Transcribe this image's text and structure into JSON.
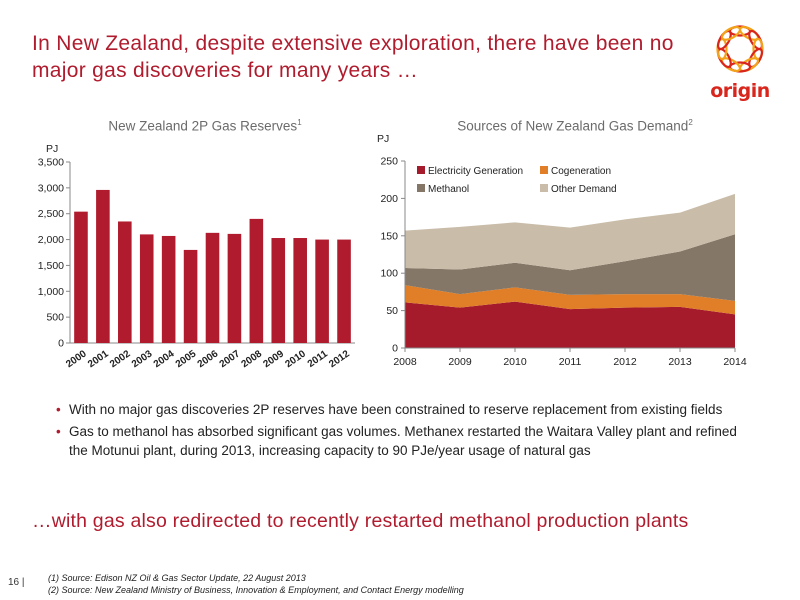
{
  "slide": {
    "title": "In New Zealand, despite extensive exploration, there have been no major gas discoveries for many years …",
    "logo_text": "origin",
    "bullets": [
      "With no major gas discoveries 2P reserves have been constrained to reserve replacement from existing fields",
      "Gas to methanol has absorbed significant gas volumes. Methanex restarted the Waitara Valley plant and refined the Motunui plant, during 2013, increasing capacity to 90 PJe/year usage of natural gas"
    ],
    "conclusion": "…with gas also redirected to recently restarted methanol production plants",
    "page_number": "16 |",
    "sources": [
      "(1)   Source: Edison NZ Oil & Gas Sector Update, 22 August 2013",
      "(2)   Source: New Zealand Ministry of Business, Innovation & Employment, and Contact Energy modelling"
    ]
  },
  "colors": {
    "brand_red": "#b01c2e",
    "logo_red": "#d9261c",
    "logo_orange": "#f2a31a"
  },
  "chart_data": [
    {
      "type": "bar",
      "title": "New Zealand 2P Gas Reserves",
      "title_footnote": "1",
      "ylabel": "PJ",
      "categories": [
        "2000",
        "2001",
        "2002",
        "2003",
        "2004",
        "2005",
        "2006",
        "2007",
        "2008",
        "2009",
        "2010",
        "2011",
        "2012"
      ],
      "values": [
        2540,
        2960,
        2350,
        2100,
        2070,
        1800,
        2130,
        2110,
        2400,
        2030,
        2030,
        2000,
        2000
      ],
      "ylim": [
        0,
        3500
      ],
      "yticks": [
        0,
        500,
        1000,
        1500,
        2000,
        2500,
        3000,
        3500
      ],
      "ytick_labels": [
        "0",
        "500",
        "1,000",
        "1,500",
        "2,000",
        "2,500",
        "3,000",
        "3,500"
      ],
      "color": "#b01c2e",
      "grid": false
    },
    {
      "type": "area",
      "stacked": true,
      "title": "Sources of New Zealand Gas Demand",
      "title_footnote": "2",
      "ylabel": "PJ",
      "x": [
        "2008",
        "2009",
        "2010",
        "2011",
        "2012",
        "2013",
        "2014"
      ],
      "ylim": [
        0,
        250
      ],
      "yticks": [
        0,
        50,
        100,
        150,
        200,
        250
      ],
      "legend_position": "top-left",
      "series": [
        {
          "name": "Electricity Generation",
          "color": "#a51b2c",
          "values": [
            61,
            54,
            62,
            52,
            54,
            55,
            45
          ]
        },
        {
          "name": "Cogeneration",
          "color": "#e07f27",
          "values": [
            23,
            18,
            19,
            19,
            18,
            17,
            18
          ]
        },
        {
          "name": "Methanol",
          "color": "#857767",
          "values": [
            23,
            33,
            33,
            33,
            44,
            57,
            89
          ]
        },
        {
          "name": "Other Demand",
          "color": "#c9bca8",
          "values": [
            50,
            57,
            54,
            57,
            56,
            52,
            54
          ]
        }
      ]
    }
  ]
}
